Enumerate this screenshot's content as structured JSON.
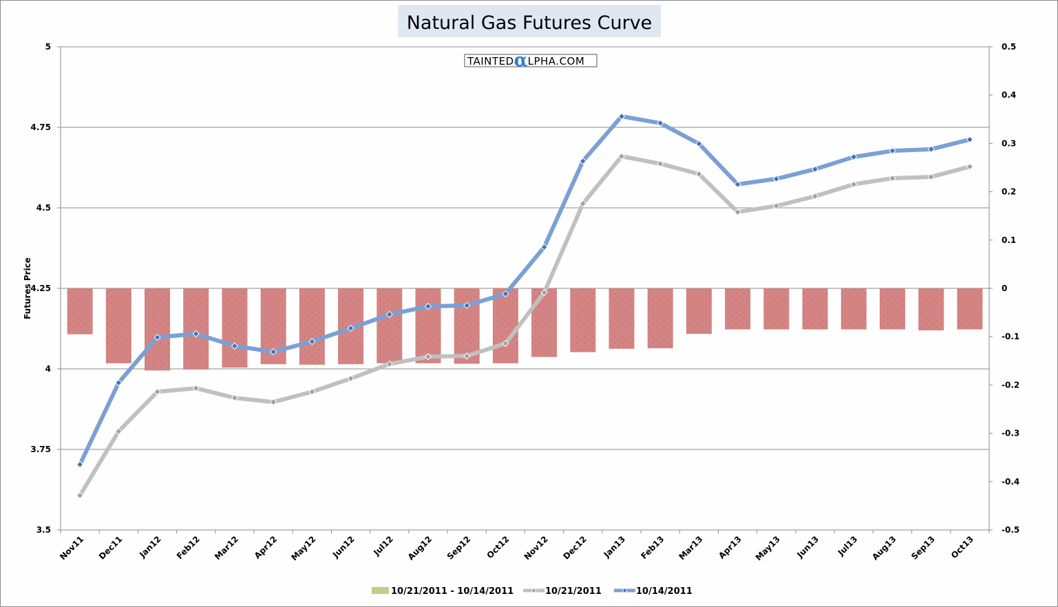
{
  "chart_data": {
    "type": "bar+line",
    "title": "Natural Gas Futures Curve",
    "watermark": {
      "prefix": "TAINTED",
      "alpha": "α",
      "suffix": "LPHA.COM"
    },
    "xlabel": "",
    "ylabel": "Futures Price",
    "y2label": "",
    "categories": [
      "Nov11",
      "Dec11",
      "Jan12",
      "Feb12",
      "Mar12",
      "Apr12",
      "May12",
      "Jun12",
      "Jul12",
      "Aug12",
      "Sep12",
      "Oct12",
      "Nov12",
      "Dec12",
      "Jan13",
      "Feb13",
      "Mar13",
      "Apr13",
      "May13",
      "Jun13",
      "Jul13",
      "Aug13",
      "Sep13",
      "Oct13"
    ],
    "ylim": [
      3.5,
      5
    ],
    "yticks": [
      "5",
      "4.75",
      "4.5",
      "4.25",
      "4",
      "3.75",
      "3.5"
    ],
    "ytick_values": [
      5,
      4.75,
      4.5,
      4.25,
      4,
      3.75,
      3.5
    ],
    "y2lim": [
      -0.5,
      0.5
    ],
    "y2ticks": [
      "0.5",
      "0.4",
      "0.3",
      "0.2",
      "0.1",
      "0",
      "-0.1",
      "-0.2",
      "-0.3",
      "-0.4",
      "-0.5"
    ],
    "y2tick_values": [
      0.5,
      0.4,
      0.3,
      0.2,
      0.1,
      0,
      -0.1,
      -0.2,
      -0.3,
      -0.4,
      -0.5
    ],
    "grid": true,
    "legend_position": "bottom",
    "series": [
      {
        "name": "10/21/2011 - 10/14/2011",
        "type": "bar",
        "axis": "right",
        "legend_color": "#bcd08c",
        "bar_color": "#d38483",
        "values": [
          -0.095,
          -0.155,
          -0.17,
          -0.168,
          -0.164,
          -0.157,
          -0.158,
          -0.157,
          -0.155,
          -0.155,
          -0.156,
          -0.155,
          -0.142,
          -0.132,
          -0.125,
          -0.124,
          -0.094,
          -0.085,
          -0.085,
          -0.085,
          -0.085,
          -0.085,
          -0.087,
          -0.085
        ]
      },
      {
        "name": "10/21/2011",
        "type": "line",
        "axis": "left",
        "color": "#c0c0c0",
        "marker_color": "#a0a0a0",
        "values": [
          3.607,
          3.806,
          3.929,
          3.94,
          3.91,
          3.897,
          3.929,
          3.97,
          4.015,
          4.038,
          4.04,
          4.079,
          4.237,
          4.513,
          4.66,
          4.637,
          4.605,
          4.487,
          4.506,
          4.536,
          4.573,
          4.592,
          4.596,
          4.628
        ]
      },
      {
        "name": "10/14/2011",
        "type": "line",
        "axis": "left",
        "color": "#7aa0d4",
        "marker_color": "#3f74b8",
        "values": [
          3.703,
          3.957,
          4.098,
          4.109,
          4.071,
          4.053,
          4.085,
          4.126,
          4.169,
          4.194,
          4.197,
          4.233,
          4.378,
          4.645,
          4.784,
          4.763,
          4.699,
          4.573,
          4.59,
          4.62,
          4.658,
          4.677,
          4.682,
          4.712
        ]
      }
    ]
  }
}
